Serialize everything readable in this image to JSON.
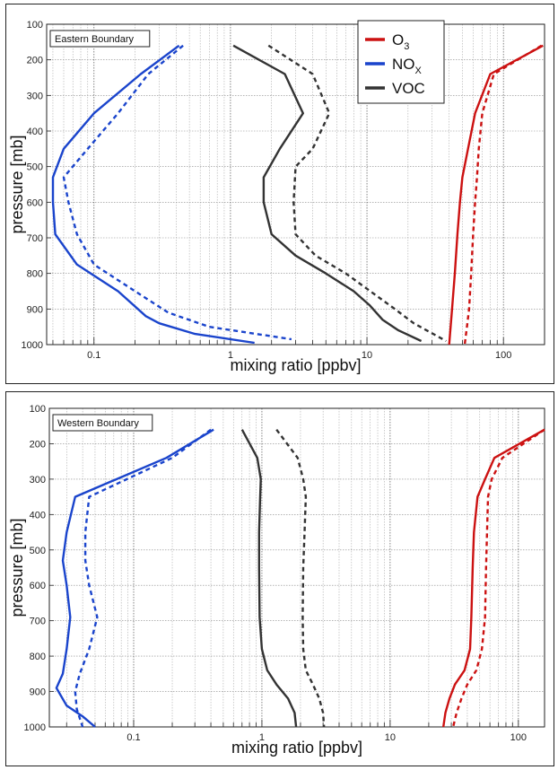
{
  "colors": {
    "o3": "#cc1111",
    "nox": "#1a44cc",
    "voc": "#333333"
  },
  "legend": {
    "items": [
      {
        "key": "o3",
        "main": "O",
        "sub": "3"
      },
      {
        "key": "nox",
        "main": "NO",
        "sub": "X"
      },
      {
        "key": "voc",
        "main": "VOC",
        "sub": ""
      }
    ]
  },
  "chart_data": [
    {
      "type": "line",
      "title": "Eastern Boundary",
      "xlabel": "mixing ratio [ppbv]",
      "ylabel": "pressure [mb]",
      "xscale": "log",
      "xlim": [
        0.045,
        200
      ],
      "ylim": [
        1000,
        100
      ],
      "y_inverted": true,
      "grid": true,
      "legend_position": "top-right",
      "xticks": [
        "0.1",
        "1",
        "10",
        "100"
      ],
      "yticks": [
        "100",
        "200",
        "300",
        "400",
        "500",
        "600",
        "700",
        "800",
        "900",
        "1000"
      ],
      "series": [
        {
          "species": "o3",
          "style": "solid",
          "x": [
            195,
            80,
            62,
            55,
            50,
            48,
            46,
            44,
            42,
            41,
            40
          ],
          "y": [
            160,
            240,
            350,
            450,
            530,
            600,
            690,
            800,
            900,
            950,
            1000
          ]
        },
        {
          "species": "o3",
          "style": "dashed",
          "x": [
            190,
            85,
            70,
            66,
            64,
            62,
            60,
            58,
            56,
            54,
            52
          ],
          "y": [
            160,
            240,
            350,
            450,
            530,
            600,
            690,
            800,
            900,
            950,
            1000
          ]
        },
        {
          "species": "nox",
          "style": "solid",
          "x": [
            0.42,
            0.22,
            0.1,
            0.06,
            0.05,
            0.05,
            0.052,
            0.075,
            0.15,
            0.24,
            0.3,
            0.55,
            1.5
          ],
          "y": [
            160,
            240,
            350,
            450,
            530,
            600,
            690,
            775,
            850,
            920,
            940,
            970,
            995
          ]
        },
        {
          "species": "nox",
          "style": "dashed",
          "x": [
            0.45,
            0.25,
            0.15,
            0.09,
            0.06,
            0.065,
            0.075,
            0.1,
            0.2,
            0.35,
            0.7,
            2.8
          ],
          "y": [
            160,
            240,
            350,
            450,
            530,
            600,
            690,
            775,
            850,
            910,
            950,
            985
          ]
        },
        {
          "species": "voc",
          "style": "solid",
          "x": [
            1.05,
            2.5,
            3.4,
            2.3,
            1.75,
            1.75,
            2.0,
            3.0,
            5.0,
            8.0,
            10.5,
            13.0,
            17.0,
            25.0
          ],
          "y": [
            160,
            240,
            350,
            450,
            530,
            600,
            690,
            750,
            800,
            850,
            890,
            930,
            960,
            990
          ]
        },
        {
          "species": "voc",
          "style": "dashed",
          "x": [
            1.9,
            4.0,
            5.3,
            4.0,
            3.0,
            2.9,
            3.0,
            4.2,
            7.0,
            11.5,
            16.0,
            22.0,
            38.0
          ],
          "y": [
            160,
            240,
            350,
            450,
            500,
            600,
            690,
            750,
            800,
            860,
            900,
            940,
            990
          ]
        }
      ]
    },
    {
      "type": "line",
      "title": "Western Boundary",
      "xlabel": "mixing ratio [ppbv]",
      "ylabel": "pressure [mb]",
      "xscale": "log",
      "xlim": [
        0.022,
        160
      ],
      "ylim": [
        1000,
        100
      ],
      "y_inverted": true,
      "grid": true,
      "xticks": [
        "0.1",
        "1",
        "10",
        "100"
      ],
      "yticks": [
        "100",
        "200",
        "300",
        "400",
        "500",
        "600",
        "700",
        "800",
        "900",
        "1000"
      ],
      "series": [
        {
          "species": "o3",
          "style": "solid",
          "x": [
            160,
            65,
            55,
            48,
            45,
            44,
            43,
            42,
            38,
            32,
            29,
            27,
            26
          ],
          "y": [
            160,
            240,
            300,
            350,
            450,
            550,
            690,
            780,
            840,
            880,
            920,
            960,
            1000
          ]
        },
        {
          "species": "o3",
          "style": "dashed",
          "x": [
            160,
            75,
            62,
            58,
            57,
            56,
            55,
            52,
            47,
            40,
            36,
            33,
            31
          ],
          "y": [
            160,
            240,
            300,
            350,
            450,
            550,
            690,
            780,
            840,
            880,
            920,
            960,
            1000
          ]
        },
        {
          "species": "nox",
          "style": "solid",
          "x": [
            0.42,
            0.18,
            0.035,
            0.03,
            0.028,
            0.03,
            0.032,
            0.03,
            0.028,
            0.025,
            0.03,
            0.04,
            0.05
          ],
          "y": [
            160,
            240,
            350,
            450,
            530,
            600,
            690,
            780,
            850,
            890,
            940,
            970,
            1000
          ]
        },
        {
          "species": "nox",
          "style": "dashed",
          "x": [
            0.4,
            0.2,
            0.045,
            0.042,
            0.042,
            0.045,
            0.052,
            0.045,
            0.038,
            0.035,
            0.036,
            0.04
          ],
          "y": [
            160,
            240,
            350,
            450,
            530,
            600,
            690,
            780,
            850,
            900,
            950,
            1000
          ]
        },
        {
          "species": "voc",
          "style": "solid",
          "x": [
            0.7,
            0.92,
            0.98,
            0.97,
            0.95,
            0.95,
            0.96,
            1.0,
            1.1,
            1.3,
            1.6,
            1.8,
            1.85
          ],
          "y": [
            160,
            240,
            300,
            350,
            450,
            550,
            690,
            780,
            840,
            880,
            920,
            960,
            1000
          ]
        },
        {
          "species": "voc",
          "style": "dashed",
          "x": [
            1.3,
            1.9,
            2.1,
            2.2,
            2.15,
            2.1,
            2.08,
            2.1,
            2.2,
            2.5,
            2.8,
            3.0,
            3.05
          ],
          "y": [
            160,
            240,
            300,
            350,
            450,
            550,
            690,
            780,
            840,
            880,
            920,
            960,
            1000
          ]
        }
      ]
    }
  ]
}
